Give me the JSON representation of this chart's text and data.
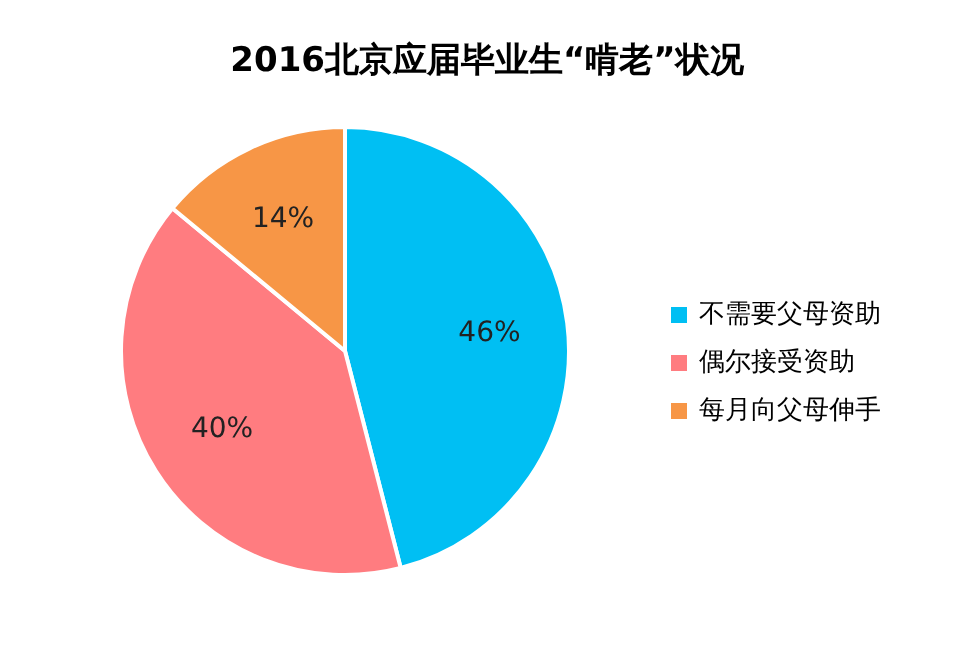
{
  "chart_data": {
    "type": "pie",
    "title": "2016北京应届毕业生“啃老”状况",
    "categories": [
      "不需要父母资助",
      "偶尔接受资助",
      "每月向父母伸手"
    ],
    "values": [
      46,
      40,
      14
    ],
    "colors": [
      "#00bff3",
      "#ff7c80",
      "#f79646"
    ],
    "value_labels": [
      "46%",
      "40%",
      "14%"
    ],
    "legend": "right"
  }
}
